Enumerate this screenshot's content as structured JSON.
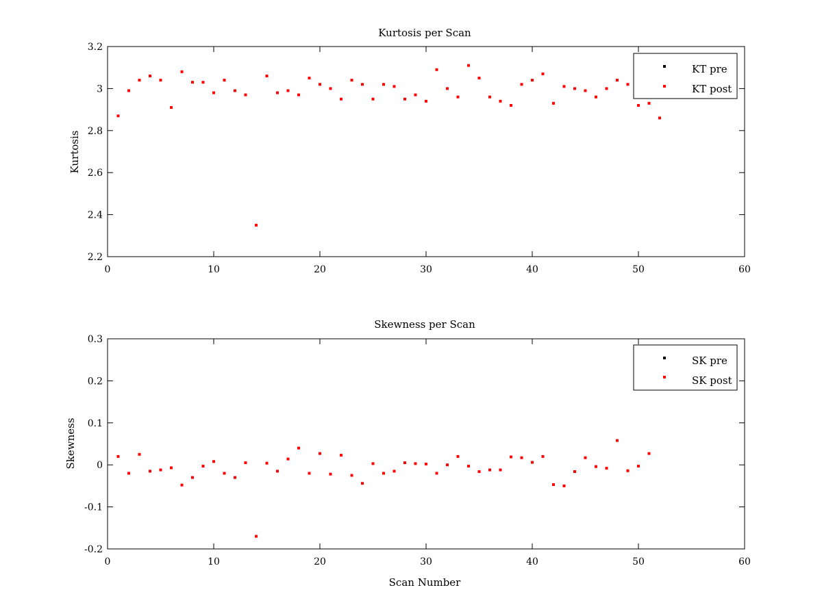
{
  "chart_data": [
    {
      "type": "scatter",
      "title": "Kurtosis per Scan",
      "xlabel": "",
      "ylabel": "Kurtosis",
      "xlim": [
        0,
        60
      ],
      "ylim": [
        2.2,
        3.2
      ],
      "xticks": [
        "0",
        "10",
        "20",
        "30",
        "40",
        "50",
        "60"
      ],
      "yticks": [
        "2.2",
        "2.4",
        "2.6",
        "2.8",
        "3",
        "3.2"
      ],
      "grid": false,
      "legend_position": "top-right",
      "series": [
        {
          "name": "KT pre",
          "color": "#000000",
          "x": [],
          "y": []
        },
        {
          "name": "KT post",
          "color": "#ff0000",
          "x": [
            1,
            2,
            3,
            4,
            5,
            6,
            7,
            8,
            9,
            10,
            11,
            12,
            13,
            14,
            15,
            16,
            17,
            18,
            19,
            20,
            21,
            22,
            23,
            24,
            25,
            26,
            27,
            28,
            29,
            30,
            31,
            32,
            33,
            34,
            35,
            36,
            37,
            38,
            39,
            40,
            41,
            42,
            43,
            44,
            45,
            46,
            47,
            48,
            49,
            50,
            51,
            52
          ],
          "y": [
            2.87,
            2.99,
            3.04,
            3.06,
            3.04,
            2.91,
            3.08,
            3.03,
            3.03,
            2.98,
            3.04,
            2.99,
            2.97,
            2.35,
            3.06,
            2.98,
            2.99,
            2.97,
            3.05,
            3.02,
            3.0,
            2.95,
            3.04,
            3.02,
            2.95,
            3.02,
            3.01,
            2.95,
            2.97,
            2.94,
            3.09,
            3.0,
            2.96,
            3.11,
            3.05,
            2.96,
            2.94,
            2.92,
            3.02,
            3.04,
            3.07,
            2.93,
            3.01,
            3.0,
            2.99,
            2.96,
            3.0,
            3.04,
            3.02,
            2.92,
            2.93,
            2.86
          ]
        }
      ]
    },
    {
      "type": "scatter",
      "title": "Skewness per Scan",
      "xlabel": "Scan Number",
      "ylabel": "Skewness",
      "xlim": [
        0,
        60
      ],
      "ylim": [
        -0.2,
        0.3
      ],
      "xticks": [
        "0",
        "10",
        "20",
        "30",
        "40",
        "50",
        "60"
      ],
      "yticks": [
        "-0.2",
        "-0.1",
        "0",
        "0.1",
        "0.2",
        "0.3"
      ],
      "grid": false,
      "legend_position": "top-right",
      "series": [
        {
          "name": "SK pre",
          "color": "#000000",
          "x": [],
          "y": []
        },
        {
          "name": "SK post",
          "color": "#ff0000",
          "x": [
            1,
            2,
            3,
            4,
            5,
            6,
            7,
            8,
            9,
            10,
            11,
            12,
            13,
            14,
            15,
            16,
            17,
            18,
            19,
            20,
            21,
            22,
            23,
            24,
            25,
            26,
            27,
            28,
            29,
            30,
            31,
            32,
            33,
            34,
            35,
            36,
            37,
            38,
            39,
            40,
            41,
            42,
            43,
            44,
            45,
            46,
            47,
            48,
            49,
            50,
            51
          ],
          "y": [
            0.02,
            -0.02,
            0.025,
            -0.015,
            -0.012,
            -0.007,
            -0.048,
            -0.03,
            -0.003,
            0.008,
            -0.02,
            -0.03,
            0.005,
            -0.17,
            0.004,
            -0.015,
            0.014,
            0.04,
            -0.02,
            0.027,
            -0.022,
            0.023,
            -0.025,
            -0.044,
            0.003,
            -0.02,
            -0.015,
            0.005,
            0.003,
            0.002,
            -0.02,
            0.0,
            0.02,
            -0.003,
            -0.016,
            -0.012,
            -0.012,
            0.019,
            0.017,
            0.006,
            0.02,
            -0.047,
            -0.05,
            -0.016,
            0.017,
            -0.004,
            -0.008,
            0.058,
            -0.014,
            -0.003,
            0.027
          ]
        }
      ]
    }
  ]
}
